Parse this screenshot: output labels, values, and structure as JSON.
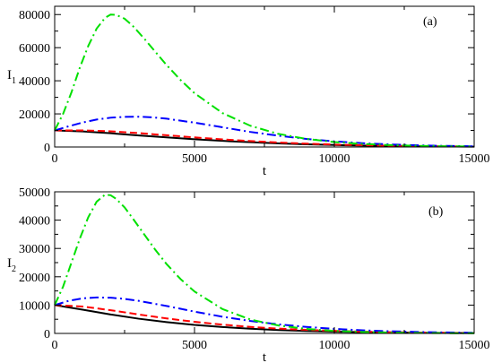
{
  "chart_data": [
    {
      "type": "line",
      "panel_label": "(a)",
      "xlabel": "t",
      "ylabel_main": "I",
      "ylabel_sub": "1",
      "xlim": [
        0,
        15000
      ],
      "ylim": [
        0,
        85000
      ],
      "xticks": [
        0,
        5000,
        10000,
        15000
      ],
      "yticks": [
        0,
        20000,
        40000,
        60000,
        80000
      ],
      "grid": false,
      "series": [
        {
          "color": "#000000",
          "dash": "solid",
          "x": [
            0,
            1000,
            2000,
            3000,
            4000,
            5000,
            6000,
            7000,
            8000,
            9000,
            10000,
            11000,
            12000,
            13000,
            14000,
            15000
          ],
          "y": [
            10000,
            9400,
            8300,
            7000,
            5800,
            4700,
            3700,
            2900,
            2200,
            1650,
            1200,
            850,
            600,
            420,
            290,
            200
          ]
        },
        {
          "color": "#ff0000",
          "dash": "dashed",
          "x": [
            0,
            1000,
            2000,
            3000,
            4000,
            5000,
            6000,
            7000,
            8000,
            9000,
            10000,
            11000,
            12000,
            13000,
            14000,
            15000
          ],
          "y": [
            10000,
            10050,
            9500,
            8400,
            7100,
            5800,
            4600,
            3600,
            2700,
            2000,
            1450,
            1050,
            750,
            520,
            360,
            250
          ]
        },
        {
          "color": "#0000ff",
          "dash": "dash-dot",
          "x": [
            0,
            500,
            1000,
            1500,
            2000,
            2500,
            3000,
            3500,
            4000,
            5000,
            6000,
            7000,
            8000,
            9000,
            10000,
            11000,
            12000,
            13000,
            14000,
            15000
          ],
          "y": [
            10000,
            12500,
            14800,
            16600,
            17700,
            18200,
            18300,
            17900,
            17100,
            14700,
            11900,
            9100,
            6800,
            4900,
            3400,
            2300,
            1550,
            1000,
            650,
            420
          ]
        },
        {
          "color": "#00e000",
          "dash": "dash-dot",
          "x": [
            0,
            300,
            600,
            900,
            1200,
            1500,
            1800,
            2000,
            2200,
            2500,
            2800,
            3200,
            3600,
            4000,
            4500,
            5000,
            6000,
            7000,
            8000,
            9000,
            10000,
            11000,
            12000,
            13000,
            14000,
            15000
          ],
          "y": [
            10000,
            20000,
            33000,
            48000,
            61000,
            71500,
            78000,
            80000,
            79800,
            77500,
            73000,
            65500,
            57500,
            49500,
            40500,
            32500,
            20500,
            12800,
            7900,
            4900,
            3000,
            1850,
            1150,
            700,
            430,
            270
          ]
        }
      ]
    },
    {
      "type": "line",
      "panel_label": "(b)",
      "xlabel": "t",
      "ylabel_main": "I",
      "ylabel_sub": "2",
      "xlim": [
        0,
        15000
      ],
      "ylim": [
        0,
        50000
      ],
      "xticks": [
        0,
        5000,
        10000,
        15000
      ],
      "yticks": [
        0,
        10000,
        20000,
        30000,
        40000,
        50000
      ],
      "grid": false,
      "series": [
        {
          "color": "#000000",
          "dash": "solid",
          "x": [
            0,
            1000,
            2000,
            3000,
            4000,
            5000,
            6000,
            7000,
            8000,
            9000,
            10000,
            11000,
            12000,
            13000,
            14000,
            15000
          ],
          "y": [
            10000,
            8400,
            6700,
            5200,
            4000,
            3000,
            2250,
            1650,
            1200,
            870,
            620,
            440,
            310,
            220,
            150,
            100
          ]
        },
        {
          "color": "#ff0000",
          "dash": "dashed",
          "x": [
            0,
            1000,
            2000,
            3000,
            4000,
            5000,
            6000,
            7000,
            8000,
            9000,
            10000,
            11000,
            12000,
            13000,
            14000,
            15000
          ],
          "y": [
            10000,
            9500,
            8200,
            6700,
            5300,
            4100,
            3100,
            2300,
            1700,
            1250,
            900,
            640,
            450,
            320,
            220,
            150
          ]
        },
        {
          "color": "#0000ff",
          "dash": "dash-dot",
          "x": [
            0,
            500,
            1000,
            1500,
            2000,
            2500,
            3000,
            4000,
            5000,
            6000,
            7000,
            8000,
            9000,
            10000,
            11000,
            12000,
            13000,
            14000,
            15000
          ],
          "y": [
            10000,
            11500,
            12400,
            12700,
            12600,
            12200,
            11500,
            9700,
            7700,
            5900,
            4400,
            3200,
            2300,
            1600,
            1100,
            750,
            500,
            340,
            230
          ]
        },
        {
          "color": "#00e000",
          "dash": "dash-dot",
          "x": [
            0,
            300,
            600,
            900,
            1200,
            1500,
            1800,
            2000,
            2200,
            2500,
            2800,
            3200,
            3600,
            4000,
            4500,
            5000,
            6000,
            7000,
            8000,
            9000,
            10000,
            11000,
            12000,
            13000,
            14000,
            15000
          ],
          "y": [
            10000,
            16500,
            25000,
            33500,
            41000,
            46500,
            49000,
            48800,
            47500,
            44500,
            40500,
            35000,
            29500,
            24500,
            19200,
            14800,
            8600,
            4900,
            2800,
            1600,
            900,
            520,
            300,
            170,
            100,
            60
          ]
        }
      ]
    }
  ]
}
